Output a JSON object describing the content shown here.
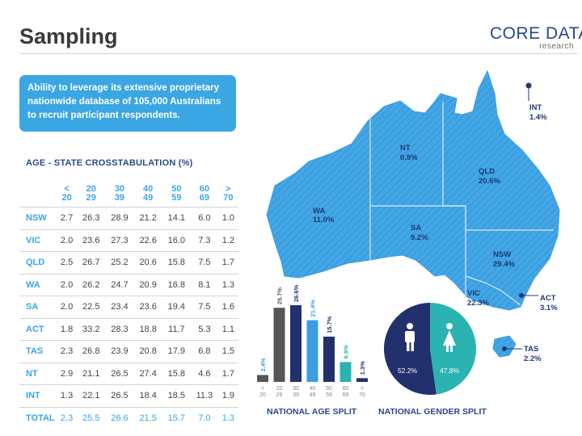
{
  "slide": {
    "title": "Sampling",
    "logo": {
      "main": "CORE DATA",
      "sub": "research"
    }
  },
  "callout": {
    "text": "Ability to leverage its extensive proprietary nationwide database of 105,000 Australians to recruit participant respondents."
  },
  "crosstab": {
    "title": "AGE - STATE CROSSTABULATION (%)",
    "headers": [
      [
        "<",
        "20"
      ],
      [
        "20",
        "29"
      ],
      [
        "30",
        "39"
      ],
      [
        "40",
        "49"
      ],
      [
        "50",
        "59"
      ],
      [
        "60",
        "69"
      ],
      [
        ">",
        "70"
      ]
    ],
    "rows": [
      {
        "state": "NSW",
        "values": [
          "2.7",
          "26.3",
          "28.9",
          "21.2",
          "14.1",
          "6.0",
          "1.0"
        ]
      },
      {
        "state": "VIC",
        "values": [
          "2.0",
          "23.6",
          "27.3",
          "22.6",
          "16.0",
          "7.3",
          "1.2"
        ]
      },
      {
        "state": "QLD",
        "values": [
          "2.5",
          "26.7",
          "25.2",
          "20.6",
          "15.8",
          "7.5",
          "1.7"
        ]
      },
      {
        "state": "WA",
        "values": [
          "2.0",
          "26.2",
          "24.7",
          "20.9",
          "16.8",
          "8.1",
          "1.3"
        ]
      },
      {
        "state": "SA",
        "values": [
          "2.0",
          "22.5",
          "23.4",
          "23.6",
          "19.4",
          "7.5",
          "1.6"
        ]
      },
      {
        "state": "ACT",
        "values": [
          "1.8",
          "33.2",
          "28.3",
          "18.8",
          "11.7",
          "5.3",
          "1.1"
        ]
      },
      {
        "state": "TAS",
        "values": [
          "2.3",
          "26.8",
          "23.9",
          "20.8",
          "17.9",
          "6.8",
          "1.5"
        ]
      },
      {
        "state": "NT",
        "values": [
          "2.9",
          "21.1",
          "26.5",
          "27.4",
          "15.8",
          "4.6",
          "1.7"
        ]
      },
      {
        "state": "INT",
        "values": [
          "1.3",
          "22.1",
          "26.5",
          "18.4",
          "18.5",
          "11.3",
          "1.9"
        ]
      }
    ],
    "total": {
      "state": "TOTAL",
      "values": [
        "2.3",
        "25.5",
        "26.6",
        "21.5",
        "15.7",
        "7.0",
        "1.3"
      ]
    }
  },
  "map": {
    "states": [
      {
        "code": "NT",
        "pct": "0.9%"
      },
      {
        "code": "QLD",
        "pct": "20.6%"
      },
      {
        "code": "WA",
        "pct": "11.0%"
      },
      {
        "code": "SA",
        "pct": "9.2%"
      },
      {
        "code": "NSW",
        "pct": "29.4%"
      },
      {
        "code": "VIC",
        "pct": "22.3%"
      },
      {
        "code": "ACT",
        "pct": "3.1%"
      },
      {
        "code": "TAS",
        "pct": "2.2%"
      },
      {
        "code": "INT",
        "pct": "1.4%"
      }
    ],
    "colors": {
      "land": "#3a9ee0",
      "land_stripe": "#57b3ea",
      "border": "#cfe7f8",
      "label": "#1d3a72"
    }
  },
  "chart_data": [
    {
      "type": "bar",
      "title": "NATIONAL AGE SPLIT",
      "categories": [
        [
          "<",
          "20"
        ],
        [
          "20",
          "29"
        ],
        [
          "30",
          "39"
        ],
        [
          "40",
          "49"
        ],
        [
          "50",
          "59"
        ],
        [
          "60",
          "69"
        ],
        [
          ">",
          "70"
        ]
      ],
      "values": [
        2.4,
        25.7,
        26.6,
        21.4,
        15.7,
        6.9,
        1.3
      ],
      "value_labels": [
        "2.4%",
        "25.7%",
        "26.6%",
        "21.4%",
        "15.7%",
        "6.9%",
        "1.3%"
      ],
      "colors": [
        "#555555",
        "#555555",
        "#22306e",
        "#3a9ee0",
        "#22306e",
        "#2ab3b1",
        "#22306e"
      ],
      "label_colors": [
        "#3a9ee0",
        "#555555",
        "#22306e",
        "#3a9ee0",
        "#22306e",
        "#2ab3b1",
        "#22306e"
      ],
      "ylim": [
        0,
        28
      ]
    },
    {
      "type": "pie",
      "title": "NATIONAL GENDER SPLIT",
      "labels": [
        "Male",
        "Female"
      ],
      "values": [
        52.2,
        47.8
      ],
      "value_labels": [
        "52.2%",
        "47.8%"
      ],
      "colors": [
        "#22306e",
        "#2ab3b1"
      ]
    }
  ]
}
